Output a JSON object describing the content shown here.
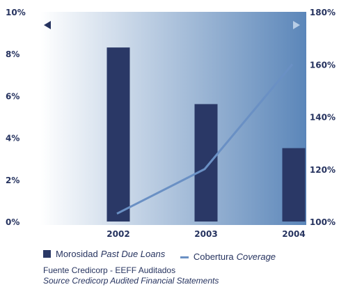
{
  "chart_data": {
    "type": "bar",
    "categories": [
      "2002",
      "2003",
      "2004"
    ],
    "series": [
      {
        "name": "Morosidad",
        "name_en": "Past Due Loans",
        "type": "bar",
        "axis": "left",
        "color": "#2a3866",
        "values": [
          8.3,
          5.6,
          3.5
        ]
      },
      {
        "name": "Cobertura",
        "name_en": "Coverage",
        "type": "line",
        "axis": "right",
        "color": "#6a90c4",
        "values": [
          103,
          120,
          160
        ]
      }
    ],
    "left_axis": {
      "min": 0,
      "max": 10,
      "ticks": [
        "0%",
        "2%",
        "4%",
        "6%",
        "8%",
        "10%"
      ]
    },
    "right_axis": {
      "min": 100,
      "max": 180,
      "ticks": [
        "100%",
        "120%",
        "140%",
        "160%",
        "180%"
      ]
    },
    "background_gradient": [
      "#ffffff",
      "#5b86b9"
    ],
    "arrow_colors": {
      "left": "#26335f",
      "right": "#b8cde6"
    }
  },
  "legend": {
    "bar": {
      "label": "Morosidad",
      "label_en": "Past Due Loans"
    },
    "line": {
      "label": "Cobertura",
      "label_en": "Coverage"
    }
  },
  "source": {
    "es": "Fuente Credicorp - EEFF Auditados",
    "en": "Source Credicorp Audited Financial Statements"
  },
  "left_arrow_icon": "triangle-left",
  "right_arrow_icon": "triangle-right"
}
